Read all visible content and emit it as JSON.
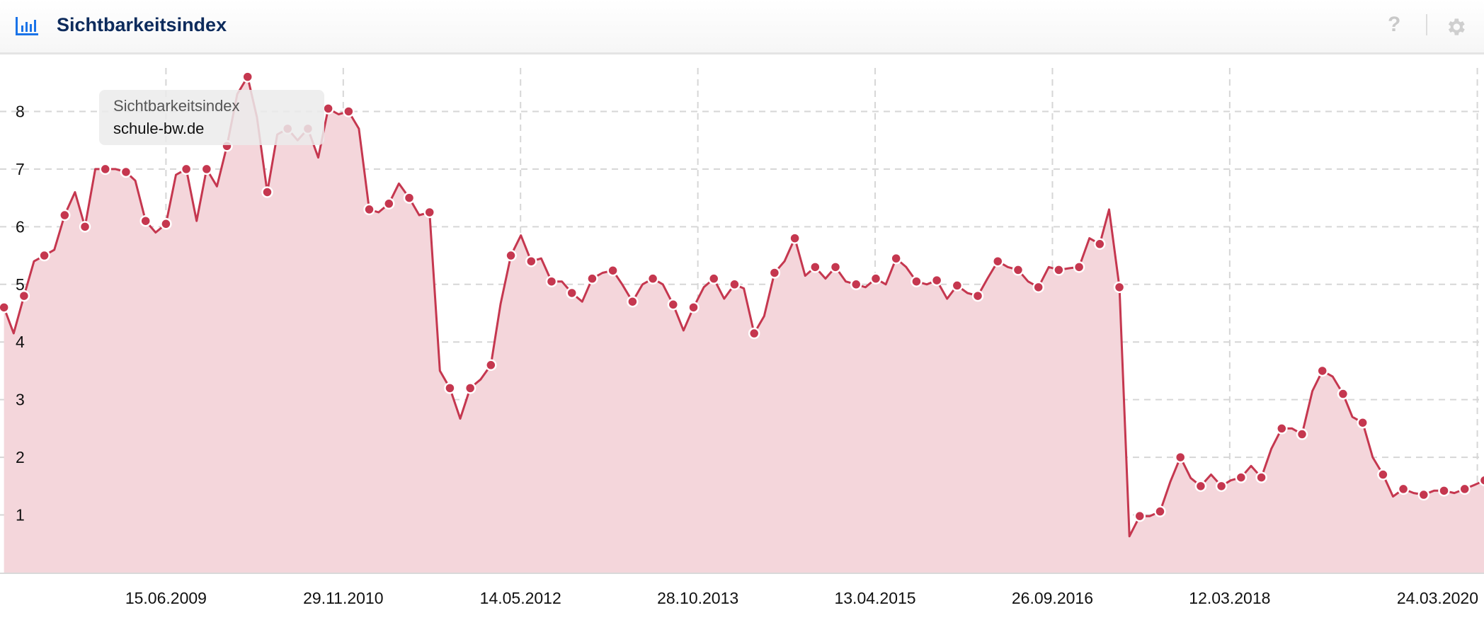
{
  "header": {
    "title": "Sichtbarkeitsindex",
    "icon": "bar-chart-icon",
    "help_icon": "question-icon",
    "settings_icon": "gear-icon",
    "help_label": "?"
  },
  "tooltip": {
    "series": "Sichtbarkeitsindex",
    "domain": "schule-bw.de"
  },
  "colors": {
    "line": "#c5374f",
    "fill": "#f4d6db",
    "title": "#0d2b5c",
    "icon": "#1a73e8"
  },
  "chart_data": {
    "type": "area",
    "title": "Sichtbarkeitsindex",
    "series_name": "schule-bw.de",
    "xlim": [
      "2008-02-03",
      "2020-04-13"
    ],
    "ylim": [
      0,
      9
    ],
    "yticks": [
      "1",
      "2",
      "3",
      "4",
      "5",
      "6",
      "7",
      "8"
    ],
    "xticks": [
      "15.06.2009",
      "29.11.2010",
      "14.05.2012",
      "28.10.2013",
      "13.04.2015",
      "26.09.2016",
      "12.03.2018",
      "24.03.2020"
    ],
    "grid": true,
    "legend": "none",
    "points": [
      [
        "2008-02",
        4.6
      ],
      [
        "2008-03",
        4.15
      ],
      [
        "2008-04",
        4.8
      ],
      [
        "2008-05",
        5.4
      ],
      [
        "2008-06",
        5.5
      ],
      [
        "2008-07",
        5.6
      ],
      [
        "2008-08",
        6.2
      ],
      [
        "2008-09",
        6.6
      ],
      [
        "2008-10",
        6.0
      ],
      [
        "2008-11",
        7.0
      ],
      [
        "2008-12",
        7.0
      ],
      [
        "2009-01",
        7.0
      ],
      [
        "2009-02",
        6.95
      ],
      [
        "2009-03",
        6.8
      ],
      [
        "2009-04",
        6.1
      ],
      [
        "2009-05",
        5.9
      ],
      [
        "2009-06",
        6.05
      ],
      [
        "2009-07",
        6.9
      ],
      [
        "2009-08",
        7.0
      ],
      [
        "2009-09",
        6.1
      ],
      [
        "2009-10",
        7.0
      ],
      [
        "2009-11",
        6.7
      ],
      [
        "2009-12",
        7.4
      ],
      [
        "2010-01",
        8.3
      ],
      [
        "2010-02",
        8.6
      ],
      [
        "2010-03",
        7.9
      ],
      [
        "2010-04",
        6.6
      ],
      [
        "2010-05",
        7.6
      ],
      [
        "2010-06",
        7.7
      ],
      [
        "2010-07",
        7.5
      ],
      [
        "2010-08",
        7.7
      ],
      [
        "2010-09",
        7.2
      ],
      [
        "2010-10",
        8.05
      ],
      [
        "2010-11",
        7.95
      ],
      [
        "2010-12",
        8.0
      ],
      [
        "2011-01",
        7.7
      ],
      [
        "2011-02",
        6.3
      ],
      [
        "2011-03",
        6.25
      ],
      [
        "2011-04",
        6.4
      ],
      [
        "2011-05",
        6.75
      ],
      [
        "2011-06",
        6.5
      ],
      [
        "2011-07",
        6.2
      ],
      [
        "2011-08",
        6.25
      ],
      [
        "2011-09",
        3.5
      ],
      [
        "2011-10",
        3.2
      ],
      [
        "2011-11",
        2.67
      ],
      [
        "2011-12",
        3.2
      ],
      [
        "2012-01",
        3.35
      ],
      [
        "2012-02",
        3.6
      ],
      [
        "2012-03",
        4.66
      ],
      [
        "2012-04",
        5.5
      ],
      [
        "2012-05",
        5.85
      ],
      [
        "2012-06",
        5.4
      ],
      [
        "2012-07",
        5.45
      ],
      [
        "2012-08",
        5.05
      ],
      [
        "2012-09",
        5.05
      ],
      [
        "2012-10",
        4.85
      ],
      [
        "2012-11",
        4.7
      ],
      [
        "2012-12",
        5.1
      ],
      [
        "2013-01",
        5.2
      ],
      [
        "2013-02",
        5.24
      ],
      [
        "2013-03",
        5.0
      ],
      [
        "2013-04",
        4.7
      ],
      [
        "2013-05",
        5.0
      ],
      [
        "2013-06",
        5.1
      ],
      [
        "2013-07",
        5.0
      ],
      [
        "2013-08",
        4.65
      ],
      [
        "2013-09",
        4.2
      ],
      [
        "2013-10",
        4.6
      ],
      [
        "2013-11",
        4.95
      ],
      [
        "2013-12",
        5.1
      ],
      [
        "2014-01",
        4.75
      ],
      [
        "2014-02",
        5.0
      ],
      [
        "2014-03",
        4.93
      ],
      [
        "2014-04",
        4.15
      ],
      [
        "2014-05",
        4.45
      ],
      [
        "2014-06",
        5.2
      ],
      [
        "2014-07",
        5.4
      ],
      [
        "2014-08",
        5.8
      ],
      [
        "2014-09",
        5.15
      ],
      [
        "2014-10",
        5.3
      ],
      [
        "2014-11",
        5.1
      ],
      [
        "2014-12",
        5.3
      ],
      [
        "2015-01",
        5.05
      ],
      [
        "2015-02",
        5.0
      ],
      [
        "2015-03",
        4.95
      ],
      [
        "2015-04",
        5.1
      ],
      [
        "2015-05",
        5.0
      ],
      [
        "2015-06",
        5.45
      ],
      [
        "2015-07",
        5.3
      ],
      [
        "2015-08",
        5.05
      ],
      [
        "2015-09",
        5.0
      ],
      [
        "2015-10",
        5.07
      ],
      [
        "2015-11",
        4.75
      ],
      [
        "2015-12",
        4.98
      ],
      [
        "2016-01",
        4.85
      ],
      [
        "2016-02",
        4.8
      ],
      [
        "2016-03",
        5.1
      ],
      [
        "2016-04",
        5.4
      ],
      [
        "2016-05",
        5.3
      ],
      [
        "2016-06",
        5.25
      ],
      [
        "2016-07",
        5.05
      ],
      [
        "2016-08",
        4.95
      ],
      [
        "2016-09",
        5.3
      ],
      [
        "2016-10",
        5.25
      ],
      [
        "2016-11",
        5.28
      ],
      [
        "2016-12",
        5.3
      ],
      [
        "2017-01",
        5.8
      ],
      [
        "2017-02",
        5.7
      ],
      [
        "2017-03",
        6.3
      ],
      [
        "2017-04",
        4.95
      ],
      [
        "2017-05",
        0.63
      ],
      [
        "2017-06",
        0.98
      ],
      [
        "2017-07",
        0.98
      ],
      [
        "2017-08",
        1.06
      ],
      [
        "2017-09",
        1.58
      ],
      [
        "2017-10",
        2.0
      ],
      [
        "2017-11",
        1.64
      ],
      [
        "2017-12",
        1.5
      ],
      [
        "2018-01",
        1.7
      ],
      [
        "2018-02",
        1.5
      ],
      [
        "2018-03",
        1.6
      ],
      [
        "2018-04",
        1.65
      ],
      [
        "2018-05",
        1.85
      ],
      [
        "2018-06",
        1.65
      ],
      [
        "2018-07",
        2.15
      ],
      [
        "2018-08",
        2.5
      ],
      [
        "2018-09",
        2.5
      ],
      [
        "2018-10",
        2.4
      ],
      [
        "2018-11",
        3.15
      ],
      [
        "2018-12",
        3.5
      ],
      [
        "2019-01",
        3.4
      ],
      [
        "2019-02",
        3.1
      ],
      [
        "2019-03",
        2.7
      ],
      [
        "2019-04",
        2.6
      ],
      [
        "2019-05",
        2.0
      ],
      [
        "2019-06",
        1.7
      ],
      [
        "2019-07",
        1.32
      ],
      [
        "2019-08",
        1.45
      ],
      [
        "2019-09",
        1.38
      ],
      [
        "2019-10",
        1.35
      ],
      [
        "2019-11",
        1.42
      ],
      [
        "2019-12",
        1.42
      ],
      [
        "2020-01",
        1.38
      ],
      [
        "2020-02",
        1.45
      ],
      [
        "2020-03",
        1.52
      ],
      [
        "2020-04",
        1.6
      ]
    ]
  }
}
